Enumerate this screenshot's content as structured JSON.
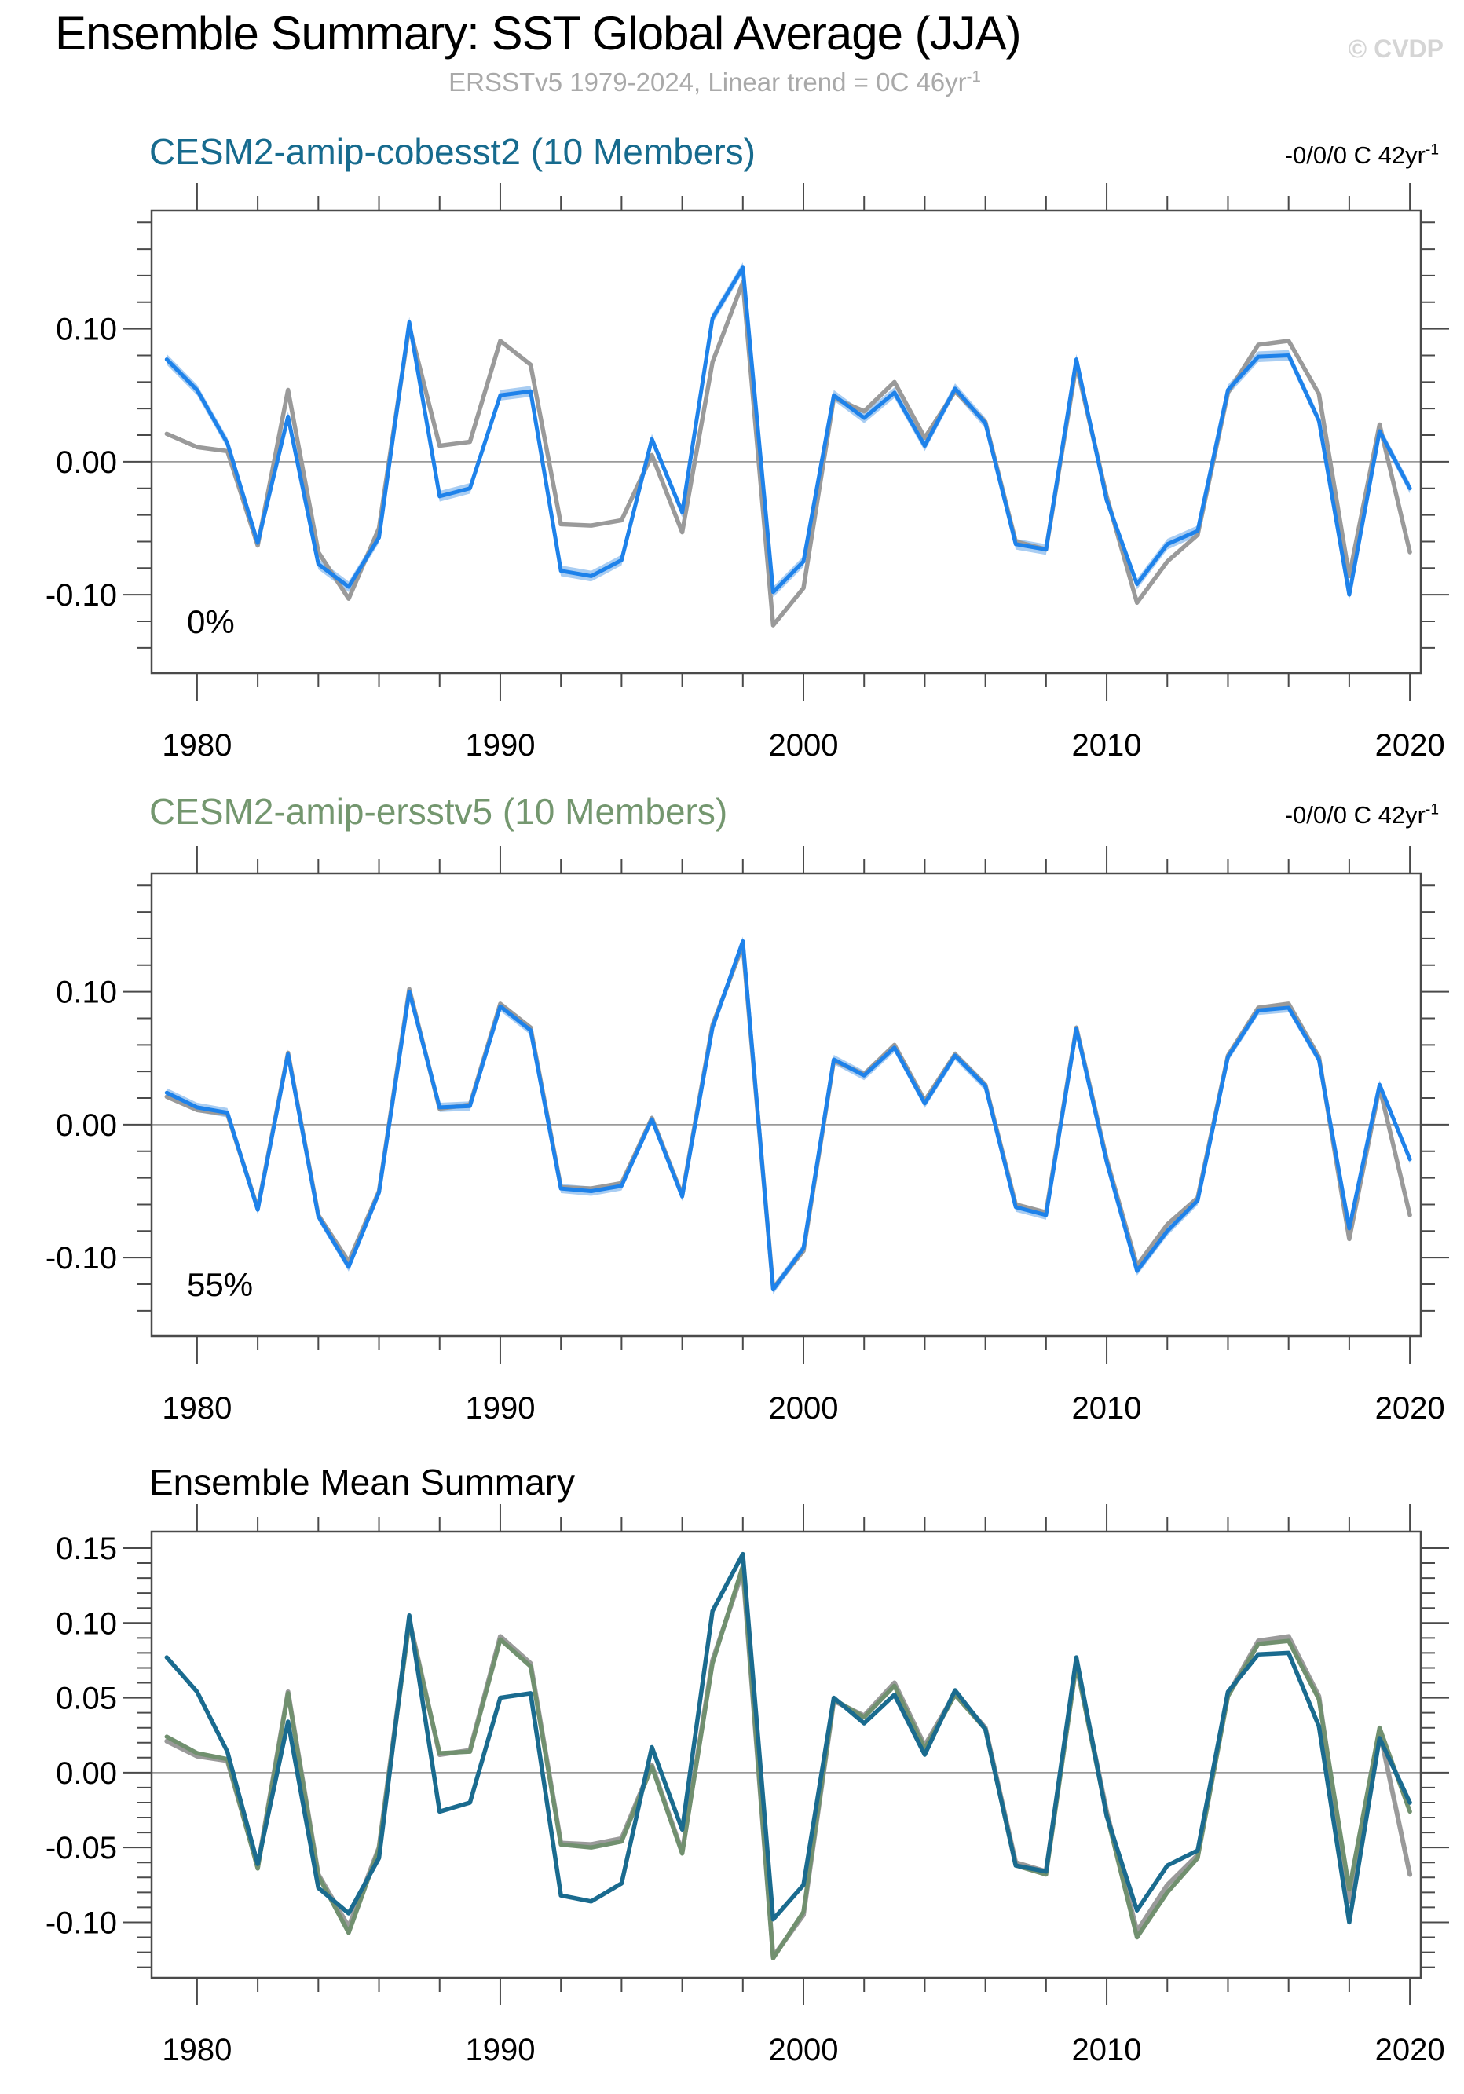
{
  "header": {
    "title": "Ensemble Summary: SST Global Average (JJA)",
    "subtitle": "ERSSTv5 1979-2024, Linear trend = 0C 46yr",
    "subtitle_sup": "-1",
    "watermark": "© CVDP"
  },
  "colors": {
    "ensemble_blue": "#1E82EA",
    "spread_band": "#A9CDF2",
    "observation_gray": "#9A9A9A",
    "cobesst2_teal": "#1A6B8F",
    "ersstv5_green": "#71906F",
    "panel1_title": "#176B8E",
    "panel2_title": "#74976F",
    "axis": "#4a4a4a",
    "zero_line": "#9a9a9a",
    "subtitle_gray": "#A9A9A9",
    "watermark_gray": "#D5D5D5"
  },
  "chart_data": {
    "type": "line",
    "x_years": [
      1979,
      1980,
      1981,
      1982,
      1983,
      1984,
      1985,
      1986,
      1987,
      1988,
      1989,
      1990,
      1991,
      1992,
      1993,
      1994,
      1995,
      1996,
      1997,
      1998,
      1999,
      2000,
      2001,
      2002,
      2003,
      2004,
      2005,
      2006,
      2007,
      2008,
      2009,
      2010,
      2011,
      2012,
      2013,
      2014,
      2015,
      2016,
      2017,
      2018,
      2019,
      2020
    ],
    "xlim": [
      1978.5,
      2020.36
    ],
    "xticks_major": [
      1980,
      1990,
      2000,
      2010,
      2020
    ],
    "xtick_labels": [
      "1980",
      "1990",
      "2000",
      "2010",
      "2020"
    ],
    "xtick_minor_step": 2,
    "panels": [
      {
        "id": "panel1",
        "title": "CESM2-amip-cobesst2 (10 Members)",
        "trend_label": "-0/0/0 C 42yr",
        "trend_sup": "-1",
        "annotation": "0%",
        "ylim": [
          -0.159,
          0.189
        ],
        "yticks": [
          {
            "v": 0.1,
            "label": "0.10"
          },
          {
            "v": 0.0,
            "label": "0.00"
          },
          {
            "v": -0.1,
            "label": "-0.10"
          }
        ],
        "ytick_minor_step": 0.02,
        "series": [
          {
            "name": "ERSSTv5 observations",
            "color": "#9A9A9A",
            "width": 5.5,
            "values": [
              0.021,
              0.011,
              0.008,
              -0.063,
              0.054,
              -0.068,
              -0.103,
              -0.05,
              0.102,
              0.012,
              0.015,
              0.091,
              0.073,
              -0.047,
              -0.048,
              -0.044,
              0.005,
              -0.053,
              0.075,
              0.135,
              -0.123,
              -0.095,
              0.048,
              0.038,
              0.06,
              0.018,
              0.053,
              0.03,
              -0.06,
              -0.066,
              0.073,
              -0.026,
              -0.106,
              -0.075,
              -0.055,
              0.052,
              0.088,
              0.091,
              0.051,
              -0.086,
              0.028,
              -0.068
            ]
          },
          {
            "name": "CESM2-amip-cobesst2 ensemble mean",
            "color": "#1E82EA",
            "width": 5,
            "band": 0.004,
            "band_color": "#A9CDF2",
            "values": [
              0.077,
              0.054,
              0.014,
              -0.061,
              0.034,
              -0.077,
              -0.094,
              -0.057,
              0.105,
              -0.026,
              -0.02,
              0.05,
              0.053,
              -0.082,
              -0.086,
              -0.074,
              0.017,
              -0.038,
              0.108,
              0.146,
              -0.098,
              -0.075,
              0.05,
              0.033,
              0.052,
              0.012,
              0.055,
              0.029,
              -0.062,
              -0.066,
              0.077,
              -0.029,
              -0.092,
              -0.062,
              -0.052,
              0.054,
              0.079,
              0.08,
              0.031,
              -0.1,
              0.023,
              -0.02
            ]
          }
        ]
      },
      {
        "id": "panel2",
        "title": "CESM2-amip-ersstv5 (10 Members)",
        "trend_label": "-0/0/0 C 42yr",
        "trend_sup": "-1",
        "annotation": "55%",
        "ylim": [
          -0.159,
          0.189
        ],
        "yticks": [
          {
            "v": 0.1,
            "label": "0.10"
          },
          {
            "v": 0.0,
            "label": "0.00"
          },
          {
            "v": -0.1,
            "label": "-0.10"
          }
        ],
        "ytick_minor_step": 0.02,
        "series": [
          {
            "name": "ERSSTv5 observations",
            "color": "#9A9A9A",
            "width": 5.5,
            "values": [
              0.021,
              0.011,
              0.008,
              -0.063,
              0.054,
              -0.068,
              -0.103,
              -0.05,
              0.102,
              0.012,
              0.015,
              0.091,
              0.073,
              -0.047,
              -0.048,
              -0.044,
              0.005,
              -0.053,
              0.075,
              0.135,
              -0.123,
              -0.095,
              0.048,
              0.038,
              0.06,
              0.018,
              0.053,
              0.03,
              -0.06,
              -0.066,
              0.073,
              -0.026,
              -0.106,
              -0.075,
              -0.055,
              0.052,
              0.088,
              0.091,
              0.051,
              -0.086,
              0.028,
              -0.068
            ]
          },
          {
            "name": "CESM2-amip-ersstv5 ensemble mean",
            "color": "#1E82EA",
            "width": 5,
            "band": 0.0035,
            "band_color": "#A9CDF2",
            "values": [
              0.024,
              0.013,
              0.009,
              -0.064,
              0.053,
              -0.069,
              -0.107,
              -0.051,
              0.1,
              0.013,
              0.014,
              0.089,
              0.071,
              -0.048,
              -0.05,
              -0.046,
              0.004,
              -0.054,
              0.073,
              0.138,
              -0.124,
              -0.093,
              0.049,
              0.037,
              0.058,
              0.016,
              0.052,
              0.029,
              -0.062,
              -0.068,
              0.072,
              -0.028,
              -0.11,
              -0.08,
              -0.057,
              0.051,
              0.086,
              0.088,
              0.049,
              -0.078,
              0.03,
              -0.026
            ]
          }
        ]
      },
      {
        "id": "panel3",
        "title": "Ensemble Mean Summary",
        "trend_label": "",
        "trend_sup": "",
        "annotation": "",
        "ylim": [
          -0.137,
          0.161
        ],
        "yticks": [
          {
            "v": 0.15,
            "label": "0.15"
          },
          {
            "v": 0.1,
            "label": "0.10"
          },
          {
            "v": 0.05,
            "label": "0.05"
          },
          {
            "v": 0.0,
            "label": "0.00"
          },
          {
            "v": -0.05,
            "label": "-0.05"
          },
          {
            "v": -0.1,
            "label": "-0.10"
          }
        ],
        "ytick_minor_step": 0.01,
        "series": [
          {
            "name": "ERSSTv5 observations",
            "color": "#9A9A9A",
            "width": 6,
            "values": [
              0.021,
              0.011,
              0.008,
              -0.063,
              0.054,
              -0.068,
              -0.103,
              -0.05,
              0.102,
              0.012,
              0.015,
              0.091,
              0.073,
              -0.047,
              -0.048,
              -0.044,
              0.005,
              -0.053,
              0.075,
              0.135,
              -0.123,
              -0.095,
              0.048,
              0.038,
              0.06,
              0.018,
              0.053,
              0.03,
              -0.06,
              -0.066,
              0.073,
              -0.026,
              -0.106,
              -0.075,
              -0.055,
              0.052,
              0.088,
              0.091,
              0.051,
              -0.086,
              0.028,
              -0.068
            ]
          },
          {
            "name": "CESM2-amip-ersstv5 ensemble mean",
            "color": "#71906F",
            "width": 5.5,
            "values": [
              0.024,
              0.013,
              0.009,
              -0.064,
              0.053,
              -0.069,
              -0.107,
              -0.051,
              0.1,
              0.013,
              0.014,
              0.089,
              0.071,
              -0.048,
              -0.05,
              -0.046,
              0.004,
              -0.054,
              0.073,
              0.138,
              -0.124,
              -0.093,
              0.049,
              0.037,
              0.058,
              0.016,
              0.052,
              0.029,
              -0.062,
              -0.068,
              0.072,
              -0.028,
              -0.11,
              -0.08,
              -0.057,
              0.051,
              0.086,
              0.088,
              0.049,
              -0.078,
              0.03,
              -0.026
            ]
          },
          {
            "name": "CESM2-amip-cobesst2 ensemble mean",
            "color": "#1A6B8F",
            "width": 5.5,
            "values": [
              0.077,
              0.054,
              0.014,
              -0.061,
              0.034,
              -0.077,
              -0.094,
              -0.057,
              0.105,
              -0.026,
              -0.02,
              0.05,
              0.053,
              -0.082,
              -0.086,
              -0.074,
              0.017,
              -0.038,
              0.108,
              0.146,
              -0.098,
              -0.075,
              0.05,
              0.033,
              0.052,
              0.012,
              0.055,
              0.029,
              -0.062,
              -0.066,
              0.077,
              -0.029,
              -0.092,
              -0.062,
              -0.052,
              0.054,
              0.079,
              0.08,
              0.031,
              -0.1,
              0.023,
              -0.02
            ]
          }
        ]
      }
    ]
  }
}
